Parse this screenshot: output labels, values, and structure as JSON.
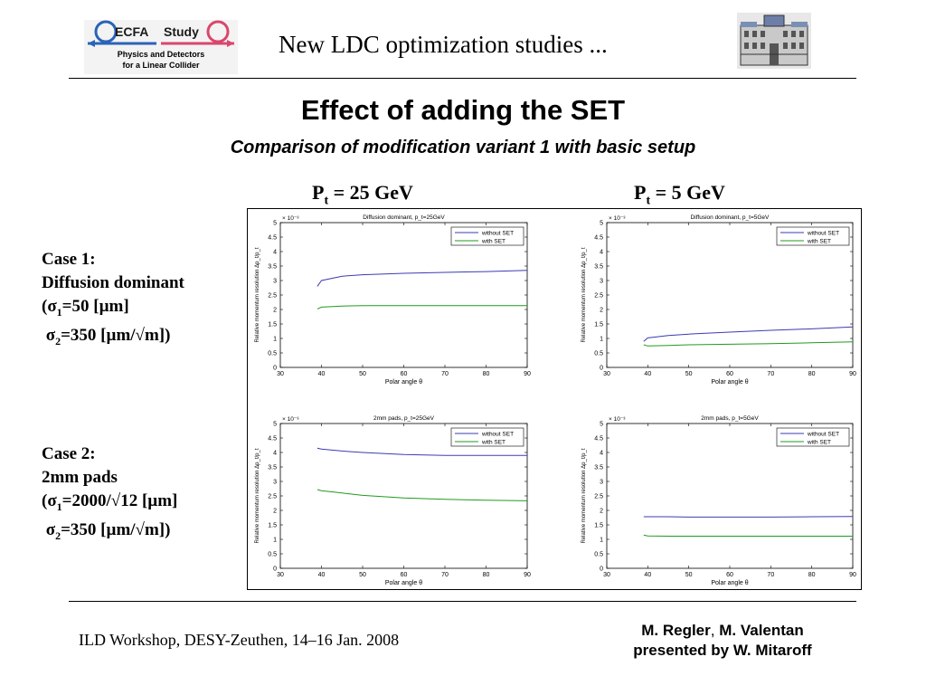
{
  "logo": {
    "ecfa": "ECFA",
    "study": "Study",
    "line1": "Physics and Detectors",
    "line2": "for a Linear Collider"
  },
  "header": {
    "title": "New LDC optimization studies ..."
  },
  "slide": {
    "title": "Effect of adding the SET",
    "subtitle": "Comparison of modification variant 1 with basic setup"
  },
  "columns": [
    {
      "pre": "P",
      "sub": "t",
      "post": " = 25 GeV"
    },
    {
      "pre": "P",
      "sub": "t",
      "post": " = 5 GeV"
    }
  ],
  "cases": [
    {
      "title": "Case 1:",
      "name": "Diffusion dominant",
      "s1_pre": "(σ",
      "s1_sub": "1",
      "s1_post": "=50 [µm]",
      "s2_pre": "σ",
      "s2_sub": "2",
      "s2_post": "=350 [µm/√m])"
    },
    {
      "title": "Case 2:",
      "name": "2mm pads",
      "s1_pre": "(σ",
      "s1_sub": "1",
      "s1_post": "=2000/√12 [µm]",
      "s2_pre": "σ",
      "s2_sub": "2",
      "s2_post": "=350 [µm/√m])"
    }
  ],
  "footer": {
    "left": "ILD Workshop, DESY-Zeuthen, 14–16 Jan. 2008",
    "authors1": "M. Regler",
    "sep": ",",
    "authors2": "M. Valentan",
    "presenter": "presented by W. Mitaroff"
  },
  "chart_data": [
    {
      "type": "line",
      "title": "Diffusion dominant, p_t=25GeV",
      "xlabel": "Polar angle θ",
      "ylabel": "Relative momentum resolution Δp_t/p_t",
      "y_exponent": "× 10⁻³",
      "xlim": [
        30,
        90
      ],
      "ylim": [
        0,
        5
      ],
      "xticks": [
        30,
        40,
        50,
        60,
        70,
        80,
        90
      ],
      "yticks": [
        0,
        0.5,
        1,
        1.5,
        2,
        2.5,
        3,
        3.5,
        4,
        4.5,
        5
      ],
      "x": [
        39,
        40,
        45,
        50,
        60,
        70,
        80,
        90
      ],
      "series": [
        {
          "name": "without SET",
          "color": "#3b3bb5",
          "values": [
            2.8,
            3.0,
            3.15,
            3.2,
            3.25,
            3.28,
            3.31,
            3.35
          ]
        },
        {
          "name": "with SET",
          "color": "#1f9b1f",
          "values": [
            2.02,
            2.08,
            2.12,
            2.13,
            2.13,
            2.13,
            2.13,
            2.13
          ]
        }
      ]
    },
    {
      "type": "line",
      "title": "Diffusion dominant, p_t=5GeV",
      "xlabel": "Polar angle θ",
      "ylabel": "Relative momentum resolution Δp_t/p_t",
      "y_exponent": "× 10⁻³",
      "xlim": [
        30,
        90
      ],
      "ylim": [
        0,
        5
      ],
      "xticks": [
        30,
        40,
        50,
        60,
        70,
        80,
        90
      ],
      "yticks": [
        0,
        0.5,
        1,
        1.5,
        2,
        2.5,
        3,
        3.5,
        4,
        4.5,
        5
      ],
      "x": [
        39,
        40,
        45,
        50,
        60,
        70,
        80,
        90
      ],
      "series": [
        {
          "name": "without SET",
          "color": "#3b3bb5",
          "values": [
            0.9,
            1.02,
            1.1,
            1.15,
            1.22,
            1.28,
            1.33,
            1.4
          ]
        },
        {
          "name": "with SET",
          "color": "#1f9b1f",
          "values": [
            0.78,
            0.74,
            0.76,
            0.78,
            0.8,
            0.82,
            0.85,
            0.88
          ]
        }
      ]
    },
    {
      "type": "line",
      "title": "2mm pads, p_t=25GeV",
      "xlabel": "Polar angle θ",
      "ylabel": "Relative momentum resolution Δp_t/p_t",
      "y_exponent": "× 10⁻³",
      "xlim": [
        30,
        90
      ],
      "ylim": [
        0,
        5
      ],
      "xticks": [
        30,
        40,
        50,
        60,
        70,
        80,
        90
      ],
      "yticks": [
        0,
        0.5,
        1,
        1.5,
        2,
        2.5,
        3,
        3.5,
        4,
        4.5,
        5
      ],
      "x": [
        39,
        40,
        45,
        50,
        60,
        70,
        80,
        90
      ],
      "series": [
        {
          "name": "without SET",
          "color": "#3b3bb5",
          "values": [
            4.15,
            4.12,
            4.05,
            4.0,
            3.93,
            3.9,
            3.9,
            3.9
          ]
        },
        {
          "name": "with SET",
          "color": "#1f9b1f",
          "values": [
            2.72,
            2.68,
            2.6,
            2.52,
            2.43,
            2.38,
            2.35,
            2.33
          ]
        }
      ]
    },
    {
      "type": "line",
      "title": "2mm pads, p_t=5GeV",
      "xlabel": "Polar angle θ",
      "ylabel": "Relative momentum resolution Δp_t/p_t",
      "y_exponent": "× 10⁻³",
      "xlim": [
        30,
        90
      ],
      "ylim": [
        0,
        5
      ],
      "xticks": [
        30,
        40,
        50,
        60,
        70,
        80,
        90
      ],
      "yticks": [
        0,
        0.5,
        1,
        1.5,
        2,
        2.5,
        3,
        3.5,
        4,
        4.5,
        5
      ],
      "x": [
        39,
        40,
        45,
        50,
        60,
        70,
        80,
        90
      ],
      "series": [
        {
          "name": "without SET",
          "color": "#3b3bb5",
          "values": [
            1.78,
            1.78,
            1.78,
            1.77,
            1.77,
            1.77,
            1.78,
            1.79
          ]
        },
        {
          "name": "with SET",
          "color": "#1f9b1f",
          "values": [
            1.15,
            1.12,
            1.11,
            1.11,
            1.11,
            1.11,
            1.11,
            1.11
          ]
        }
      ]
    }
  ]
}
